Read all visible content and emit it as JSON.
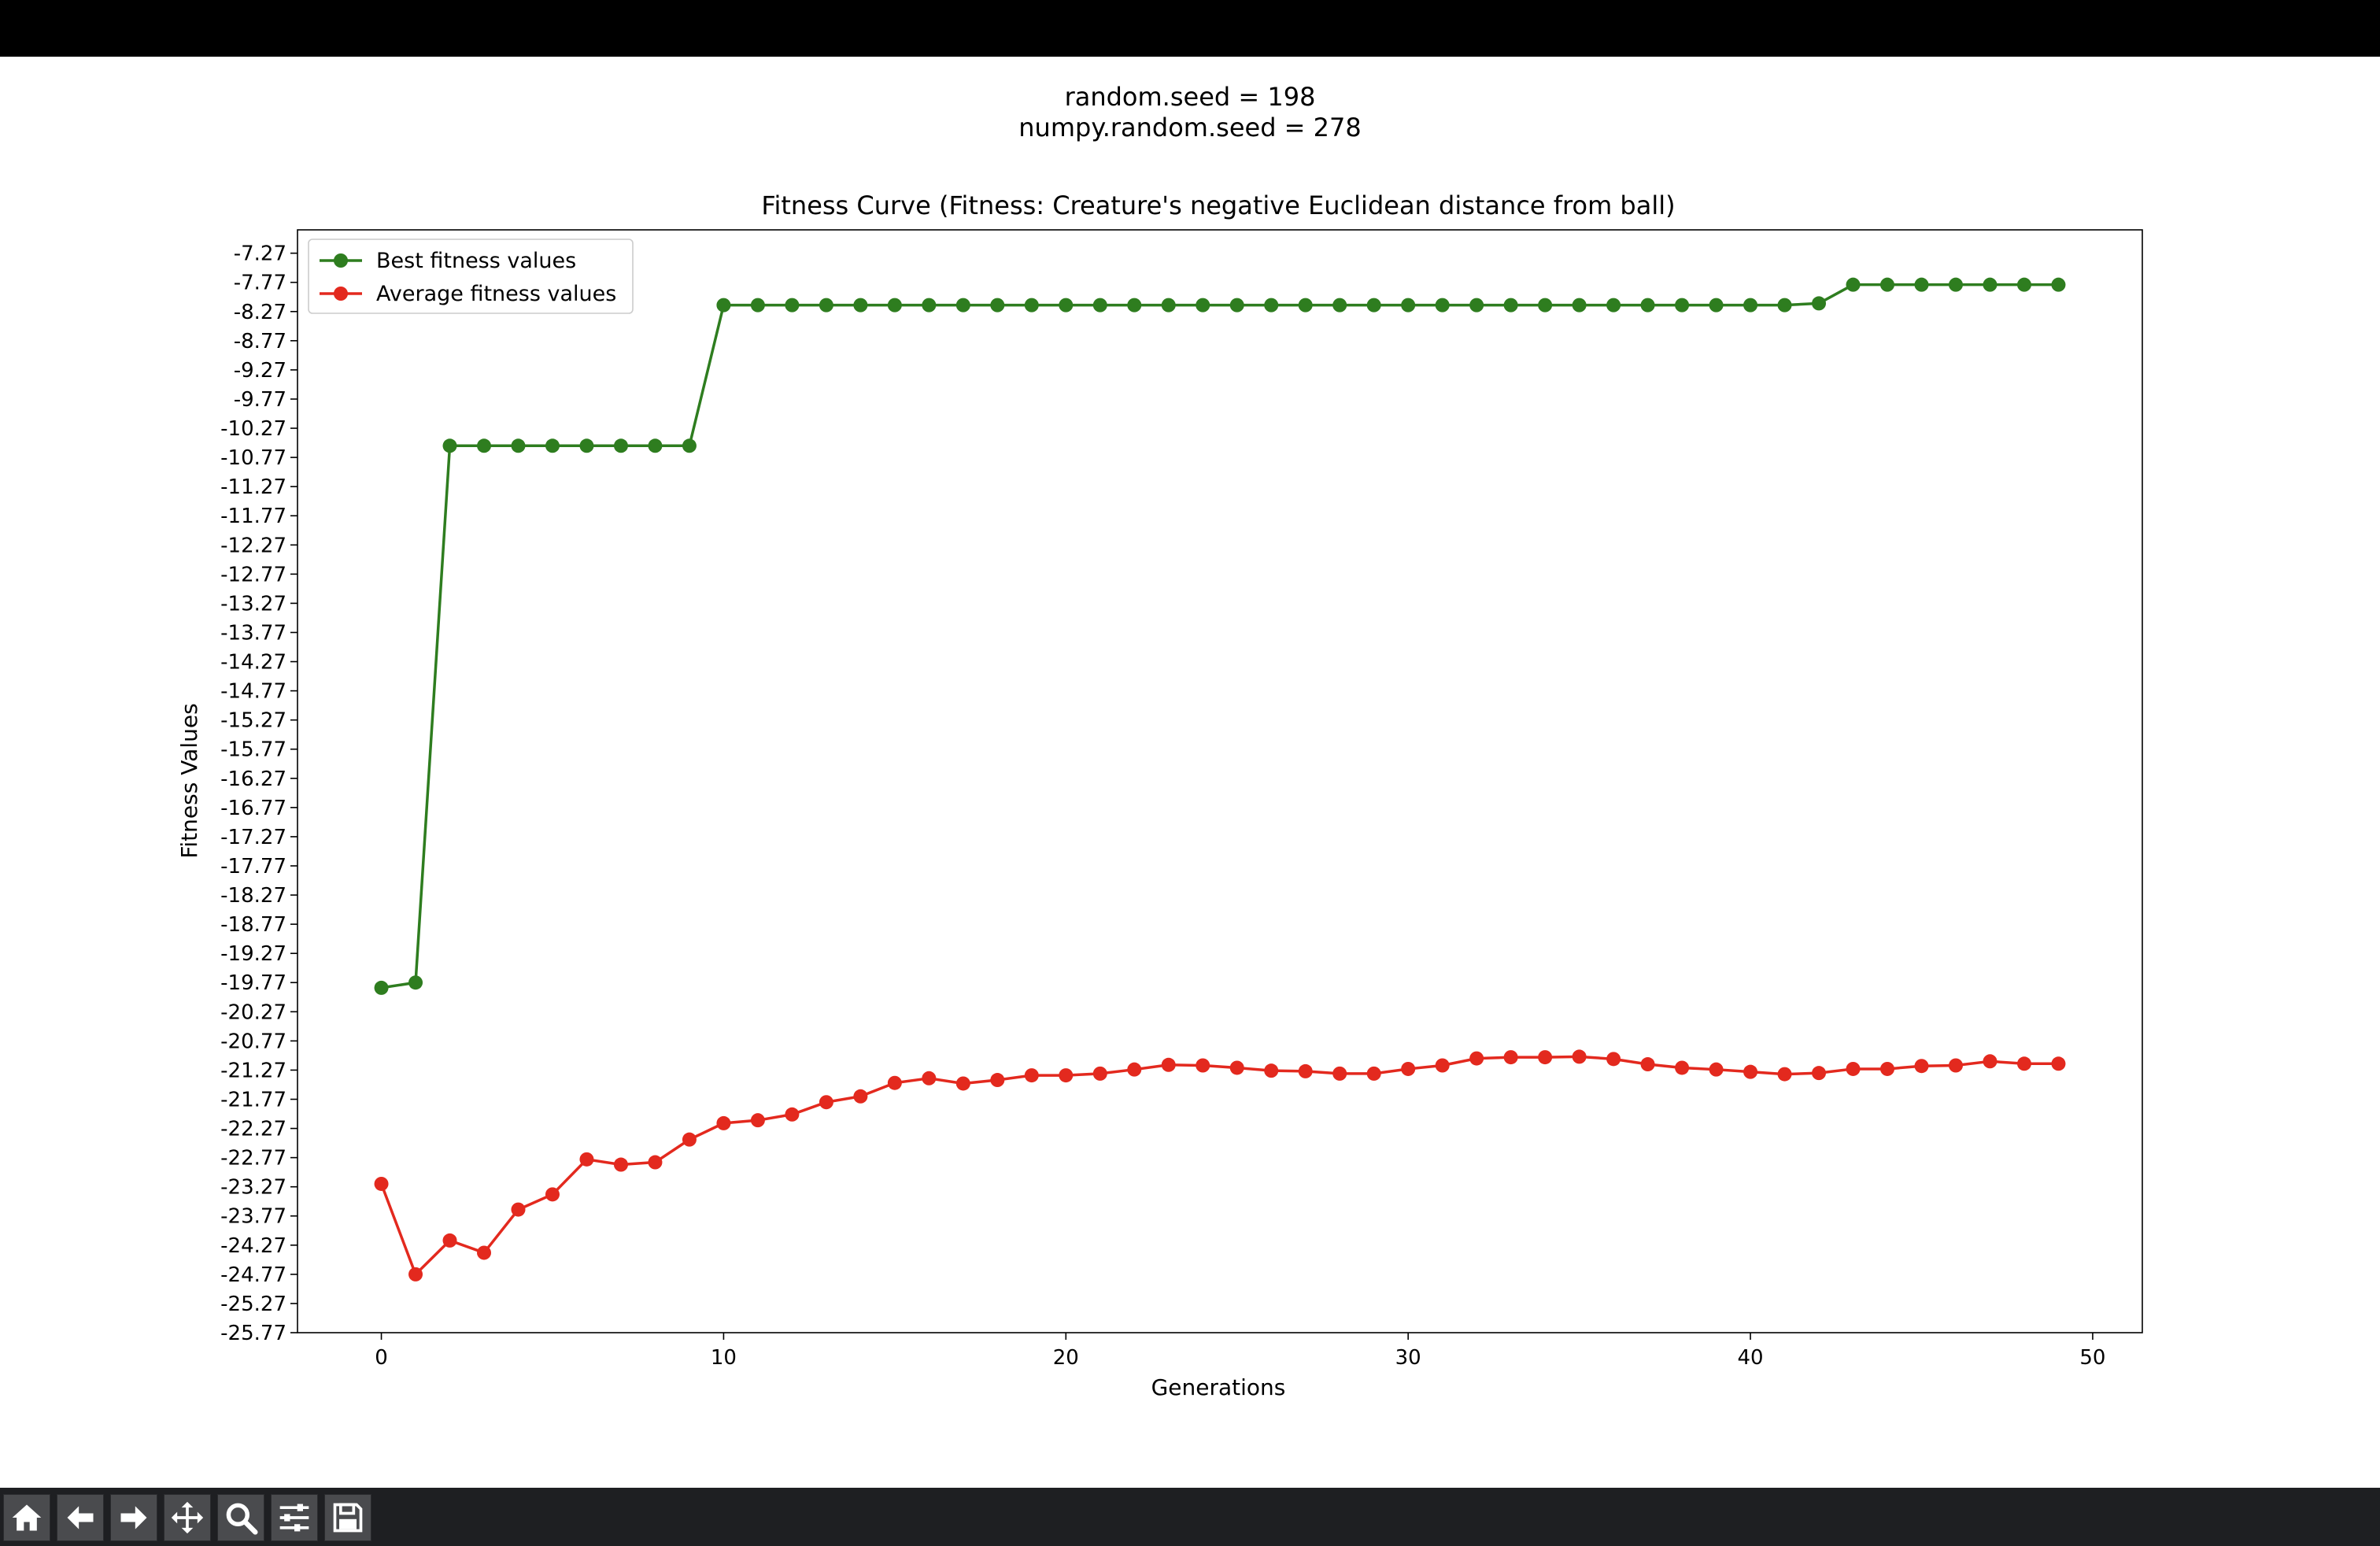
{
  "figure": {
    "suptitle_lines": [
      "random.seed = 198",
      "numpy.random.seed = 278"
    ]
  },
  "chart_data": {
    "type": "line",
    "title": "Fitness Curve (Fitness: Creature's negative Euclidean distance from ball)",
    "xlabel": "Generations",
    "ylabel": "Fitness Values",
    "xlim": [
      -2.45,
      51.45
    ],
    "ylim": [
      -25.77,
      -6.87
    ],
    "xticks": [
      0,
      10,
      20,
      30,
      40,
      50
    ],
    "yticks": [
      -7.27,
      -7.77,
      -8.27,
      -8.77,
      -9.27,
      -9.77,
      -10.27,
      -10.77,
      -11.27,
      -11.77,
      -12.27,
      -12.77,
      -13.27,
      -13.77,
      -14.27,
      -14.77,
      -15.27,
      -15.77,
      -16.27,
      -16.77,
      -17.27,
      -17.77,
      -18.27,
      -18.77,
      -19.27,
      -19.77,
      -20.27,
      -20.77,
      -21.27,
      -21.77,
      -22.27,
      -22.77,
      -23.27,
      -23.77,
      -24.27,
      -24.77,
      -25.27,
      -25.77
    ],
    "ytick_labels": [
      "-7.27",
      "-7.77",
      "-8.27",
      "-8.77",
      "-9.27",
      "-9.77",
      "-10.27",
      "-10.77",
      "-11.27",
      "-11.77",
      "-12.27",
      "-12.77",
      "-13.27",
      "-13.77",
      "-14.27",
      "-14.77",
      "-15.27",
      "-15.77",
      "-16.27",
      "-16.77",
      "-17.27",
      "-17.77",
      "-18.27",
      "-18.77",
      "-19.27",
      "-19.77",
      "-20.27",
      "-20.77",
      "-21.27",
      "-21.77",
      "-22.27",
      "-22.77",
      "-23.27",
      "-23.77",
      "-24.27",
      "-24.77",
      "-25.27",
      "-25.77"
    ],
    "xtick_labels": [
      "0",
      "10",
      "20",
      "30",
      "40",
      "50"
    ],
    "grid": false,
    "legend_position": "top-left",
    "x": [
      0,
      1,
      2,
      3,
      4,
      5,
      6,
      7,
      8,
      9,
      10,
      11,
      12,
      13,
      14,
      15,
      16,
      17,
      18,
      19,
      20,
      21,
      22,
      23,
      24,
      25,
      26,
      27,
      28,
      29,
      30,
      31,
      32,
      33,
      34,
      35,
      36,
      37,
      38,
      39,
      40,
      41,
      42,
      43,
      44,
      45,
      46,
      47,
      48,
      49
    ],
    "series": [
      {
        "name": "Best fitness values",
        "color": "#2e7d1f",
        "values": [
          -19.86,
          -19.77,
          -10.57,
          -10.57,
          -10.57,
          -10.57,
          -10.57,
          -10.57,
          -10.57,
          -10.57,
          -8.16,
          -8.16,
          -8.16,
          -8.16,
          -8.16,
          -8.16,
          -8.16,
          -8.16,
          -8.16,
          -8.16,
          -8.16,
          -8.16,
          -8.16,
          -8.16,
          -8.16,
          -8.16,
          -8.16,
          -8.16,
          -8.16,
          -8.16,
          -8.16,
          -8.16,
          -8.16,
          -8.16,
          -8.16,
          -8.16,
          -8.16,
          -8.16,
          -8.16,
          -8.16,
          -8.16,
          -8.16,
          -8.13,
          -7.81,
          -7.81,
          -7.81,
          -7.81,
          -7.81,
          -7.81,
          -7.81
        ]
      },
      {
        "name": "Average fitness values",
        "color": "#e3291e",
        "values": [
          -23.22,
          -24.77,
          -24.19,
          -24.4,
          -23.66,
          -23.4,
          -22.8,
          -22.89,
          -22.85,
          -22.46,
          -22.18,
          -22.13,
          -22.03,
          -21.82,
          -21.72,
          -21.49,
          -21.41,
          -21.5,
          -21.44,
          -21.36,
          -21.36,
          -21.33,
          -21.26,
          -21.18,
          -21.19,
          -21.23,
          -21.28,
          -21.29,
          -21.33,
          -21.33,
          -21.25,
          -21.19,
          -21.07,
          -21.05,
          -21.05,
          -21.04,
          -21.08,
          -21.17,
          -21.23,
          -21.26,
          -21.3,
          -21.34,
          -21.32,
          -21.25,
          -21.25,
          -21.2,
          -21.19,
          -21.12,
          -21.16,
          -21.16
        ]
      }
    ]
  },
  "toolbar": {
    "buttons": [
      {
        "name": "home-button",
        "icon": "home-icon"
      },
      {
        "name": "back-button",
        "icon": "arrow-left-icon"
      },
      {
        "name": "forward-button",
        "icon": "arrow-right-icon"
      },
      {
        "name": "pan-button",
        "icon": "move-icon"
      },
      {
        "name": "zoom-button",
        "icon": "magnifier-icon"
      },
      {
        "name": "configure-subplots-button",
        "icon": "sliders-icon"
      },
      {
        "name": "save-button",
        "icon": "floppy-disk-icon"
      }
    ]
  }
}
